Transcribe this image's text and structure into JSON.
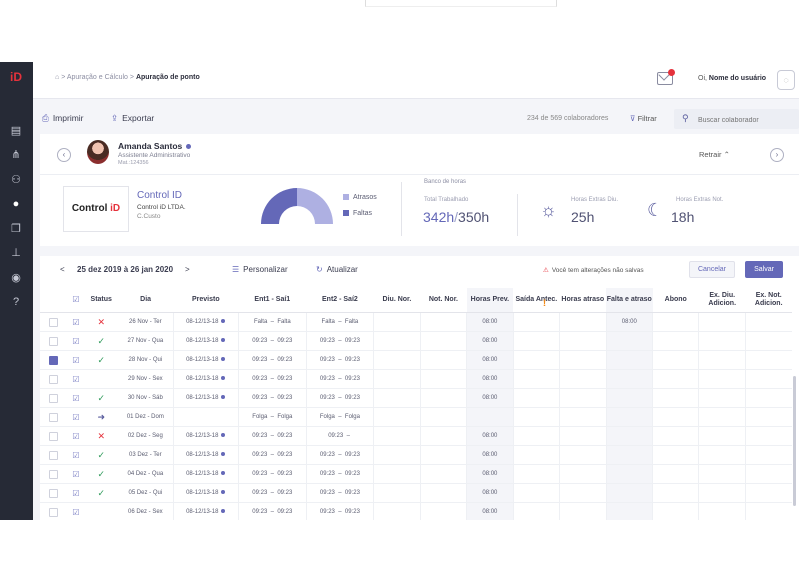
{
  "app": {
    "logo": "iD"
  },
  "sidebar": {
    "icons": [
      "database-icon",
      "org-chart-icon",
      "users-icon",
      "user-icon",
      "documents-icon",
      "pin-icon",
      "account-icon",
      "help-icon"
    ]
  },
  "header": {
    "crumb_sep": ">",
    "breadcrumb_parent": "Apuração e Cálculo",
    "breadcrumb_current": "Apuração de ponto",
    "mail_badge": "1",
    "greeting": "Oi,",
    "user_name": "Nome do usuário"
  },
  "toolbar": {
    "print_label": "Imprimir",
    "export_label": "Exportar",
    "count_text": "234 de 569 colaboradores",
    "filter_label": "Filtrar",
    "search_placeholder": "Buscar colaborador"
  },
  "employee": {
    "name": "Amanda Santos",
    "role": "Assistente Administrativo",
    "matricula": "Mat.:124356",
    "retrair_label": "Retrair"
  },
  "company": {
    "logo_text": "Control",
    "logo_accent": "iD",
    "name": "Control ID",
    "legal": "Control iD LTDA.",
    "cost_center": "C.Custo"
  },
  "chart": {
    "legend": [
      {
        "label": "Atrasos",
        "color": "#aeb0e2"
      },
      {
        "label": "Faltas",
        "color": "#6468b8"
      }
    ]
  },
  "banco_horas": {
    "section_label": "Banco de horas",
    "total_label": "Total Trabalhado",
    "total_worked": "342h",
    "total_separator": "/",
    "total_expected": "350h",
    "extra_day_label": "Horas Extras Diu.",
    "extra_day_value": "25h",
    "extra_night_label": "Horas Extras Not.",
    "extra_night_value": "18h"
  },
  "period": {
    "prev": "<",
    "label": "25 dez 2019 à 26 jan 2020",
    "next": ">",
    "customize_label": "Personalizar",
    "refresh_label": "Atualizar",
    "unsaved_warning": "Você tem alterações não salvas",
    "cancel_label": "Cancelar",
    "save_label": "Salvar"
  },
  "table": {
    "columns": [
      "Status",
      "Dia",
      "Previsto",
      "Ent1  -  Saí1",
      "Ent2  -  Saí2",
      "Diu. Nor.",
      "Not. Nor.",
      "Horas Prev.",
      "Saída Antec.",
      "Horas atraso",
      "Falta e atraso",
      "Abono",
      "Ex. Diu. Adicion.",
      "Ex. Not. Adicion."
    ],
    "rows": [
      {
        "checked": false,
        "status": "✕",
        "status_type": "err",
        "day": "26 Nov - Ter",
        "expected": "08-12/13-18",
        "ent1": "Falta",
        "sai1": "Falta",
        "ent2": "Falta",
        "sai2": "Falta",
        "p1": "red",
        "p2": "red",
        "prev_hours": "08:00",
        "falta": "08:00"
      },
      {
        "checked": false,
        "status": "✓",
        "status_type": "ok",
        "day": "27 Nov - Qua",
        "expected": "08-12/13-18",
        "ent1": "09:23",
        "sai1": "09:23",
        "ent2": "09:23",
        "sai2": "09:23",
        "p1": "norm",
        "p2": "norm",
        "prev_hours": "08:00",
        "falta": ""
      },
      {
        "checked": true,
        "status": "✓",
        "status_type": "ok",
        "day": "28 Nov - Qui",
        "expected": "08-12/13-18",
        "ent1": "09:23",
        "sai1": "09:23",
        "ent2": "09:23",
        "sai2": "09:23",
        "p1": "norm",
        "p2": "norm",
        "prev_hours": "08:00",
        "falta": ""
      },
      {
        "checked": false,
        "status": "!",
        "status_type": "warn",
        "day": "29 Nov - Sex",
        "expected": "08-12/13-18",
        "ent1": "09:23",
        "sai1": "09:23",
        "ent2": "09:23",
        "sai2": "09:23",
        "p1": "org",
        "p2": "org",
        "prev_hours": "08:00",
        "falta": ""
      },
      {
        "checked": false,
        "status": "✓",
        "status_type": "ok",
        "day": "30 Nov - Sáb",
        "expected": "08-12/13-18",
        "ent1": "09:23",
        "sai1": "09:23",
        "ent2": "09:23",
        "sai2": "09:23",
        "p1": "norm",
        "p2": "norm",
        "prev_hours": "08:00",
        "falta": ""
      },
      {
        "checked": false,
        "status": "➜",
        "status_type": "arr",
        "day": "01 Dez - Dom",
        "expected": "",
        "ent1": "Folga",
        "sai1": "Folga",
        "ent2": "Folga",
        "sai2": "Folga",
        "p1": "norm",
        "p2": "norm",
        "prev_hours": "",
        "falta": ""
      },
      {
        "checked": false,
        "status": "✕",
        "status_type": "err",
        "day": "02 Dez - Seg",
        "expected": "08-12/13-18",
        "ent1": "09:23",
        "sai1": "09:23",
        "ent2": "09:23",
        "sai2": "",
        "p1": "red",
        "p2": "red",
        "prev_hours": "08:00",
        "falta": ""
      },
      {
        "checked": false,
        "status": "✓",
        "status_type": "ok",
        "day": "03 Dez - Ter",
        "expected": "08-12/13-18",
        "ent1": "09:23",
        "sai1": "09:23",
        "ent2": "09:23",
        "sai2": "09:23",
        "p1": "norm",
        "p2": "norm",
        "prev_hours": "08:00",
        "falta": ""
      },
      {
        "checked": false,
        "status": "✓",
        "status_type": "ok",
        "day": "04 Dez - Qua",
        "expected": "08-12/13-18",
        "ent1": "09:23",
        "sai1": "09:23",
        "ent2": "09:23",
        "sai2": "09:23",
        "p1": "norm",
        "p2": "norm",
        "prev_hours": "08:00",
        "falta": ""
      },
      {
        "checked": false,
        "status": "✓",
        "status_type": "ok",
        "day": "05 Dez - Qui",
        "expected": "08-12/13-18",
        "ent1": "09:23",
        "sai1": "09:23",
        "ent2": "09:23",
        "sai2": "09:23",
        "p1": "norm",
        "p2": "norm",
        "prev_hours": "08:00",
        "falta": ""
      },
      {
        "checked": false,
        "status": "!",
        "status_type": "warn",
        "day": "06 Dez - Sex",
        "expected": "08-12/13-18",
        "ent1": "09:23",
        "sai1": "09:23",
        "ent2": "09:23",
        "sai2": "09:23",
        "p1": "norm",
        "p2": "norm",
        "prev_hours": "08:00",
        "falta": ""
      }
    ]
  },
  "colors": {
    "accent": "#6468b8",
    "danger": "#e5323c",
    "success": "#2e9a5a",
    "warning": "#ef8a1a",
    "sidebar": "#262a36"
  }
}
